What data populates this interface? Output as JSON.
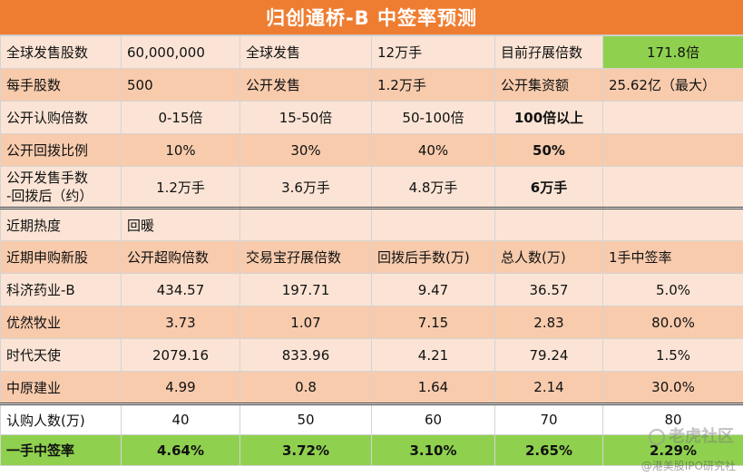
{
  "title": "归创通桥-B  中签率预测",
  "info": {
    "row1": [
      "全球发售股数",
      "60,000,000",
      "全球发售",
      "12万手",
      "目前孖展倍数",
      "171.8倍"
    ],
    "row2": [
      "每手股数",
      "500",
      "公开发售",
      "1.2万手",
      "公开集资额",
      "25.62亿（最大）"
    ]
  },
  "clawback": {
    "oversub": [
      "公开认购倍数",
      "0-15倍",
      "15-50倍",
      "50-100倍",
      "100倍以上",
      ""
    ],
    "ratio": [
      "公开回拨比例",
      "10%",
      "30%",
      "40%",
      "50%",
      ""
    ],
    "lots_label": [
      "公开发售手数",
      "-回拨后（约）"
    ],
    "lots": [
      "1.2万手",
      "3.6万手",
      "4.8万手",
      "6万手",
      ""
    ]
  },
  "recent": {
    "heat": [
      "近期热度",
      "回暖",
      "",
      "",
      "",
      ""
    ],
    "headers": [
      "近期申购新股",
      "公开超购倍数",
      "交易宝孖展倍数",
      "回拨后手数(万)",
      "总人数(万)",
      "1手中签率"
    ],
    "rows": [
      [
        "科济药业-B",
        "434.57",
        "197.71",
        "9.47",
        "36.57",
        "5.0%"
      ],
      [
        "优然牧业",
        "3.73",
        "1.07",
        "7.15",
        "2.83",
        "80.0%"
      ],
      [
        "时代天使",
        "2079.16",
        "833.96",
        "4.21",
        "79.24",
        "1.5%"
      ],
      [
        "中原建业",
        "4.99",
        "0.8",
        "1.64",
        "2.14",
        "30.0%"
      ]
    ]
  },
  "forecast": {
    "people": [
      "认购人数(万)",
      "40",
      "50",
      "60",
      "70",
      "80"
    ],
    "rate": [
      "一手中签率",
      "4.64%",
      "3.72%",
      "3.10%",
      "2.65%",
      "2.29%"
    ]
  },
  "watermark": {
    "brand": "老虎社区",
    "handle": "@港美股IPO研究社"
  },
  "colors": {
    "title_bg": "#ef7d31",
    "pink": "#fbe4d5",
    "peach": "#f8cbad",
    "green": "#8fd14f"
  }
}
